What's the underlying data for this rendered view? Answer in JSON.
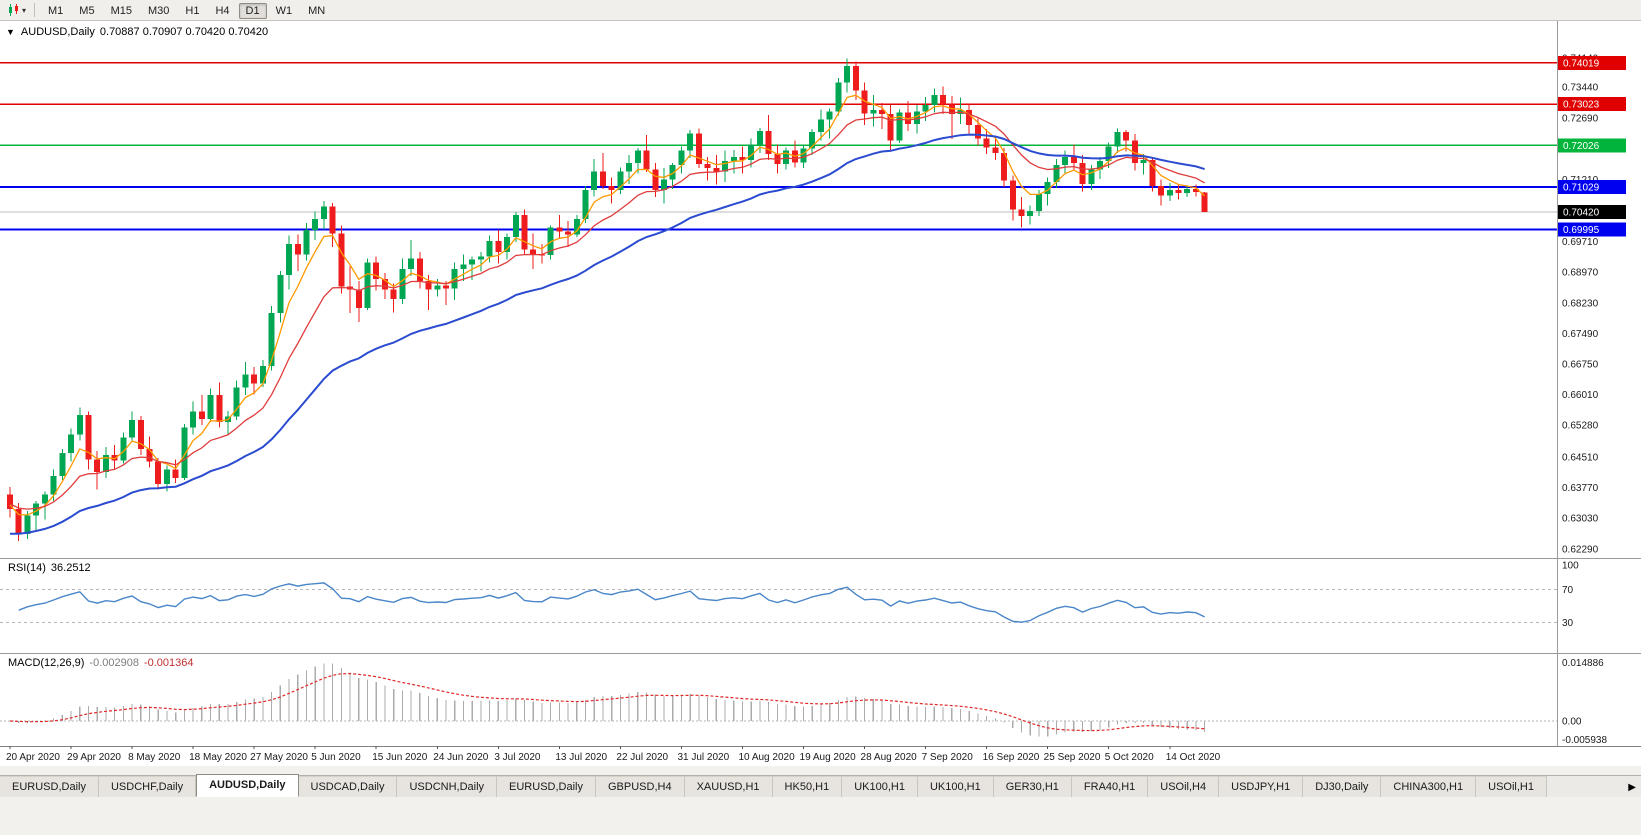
{
  "toolbar": {
    "chart_type_tooltip": "candlestick-chart-type",
    "caret": "▾",
    "timeframes": [
      "M1",
      "M5",
      "M15",
      "M30",
      "H1",
      "H4",
      "D1",
      "W1",
      "MN"
    ],
    "active_timeframe": "D1"
  },
  "header": {
    "menu_icon": "▼",
    "symbol_label": "AUDUSD,Daily",
    "ohlc": "0.70887 0.70907 0.70420 0.70420"
  },
  "rsi_panel": {
    "label": "RSI(14)",
    "value": "36.2512"
  },
  "macd_panel": {
    "label": "MACD(12,26,9)",
    "value_main": "-0.002908",
    "value_signal": "-0.001364"
  },
  "tabs": {
    "items": [
      "EURUSD,Daily",
      "USDCHF,Daily",
      "AUDUSD,Daily",
      "USDCAD,Daily",
      "USDCNH,Daily",
      "EURUSD,Daily",
      "GBPUSD,H4",
      "XAUUSD,H1",
      "HK50,H1",
      "UK100,H1",
      "UK100,H1",
      "GER30,H1",
      "FRA40,H1",
      "USOil,H4",
      "USDJPY,H1",
      "DJ30,Daily",
      "CHINA300,H1",
      "USOil,H1"
    ],
    "active_index": 2,
    "scroll_icon": "▶"
  },
  "chart_data": {
    "type": "candlestick",
    "symbol": "AUDUSD",
    "timeframe": "Daily",
    "ohlc_display": {
      "open": "0.70887",
      "high": "0.70907",
      "low": "0.70420",
      "close": "0.70420"
    },
    "ylim": [
      0.6207,
      0.7503
    ],
    "grid": false,
    "colors": {
      "bull": "#00a651",
      "bear": "#ee1c1c",
      "ma_fast": "#ff9900",
      "ma_mid": "#e03c3c",
      "ma_slow": "#2b4bd0",
      "rsi_line": "#4a86c8",
      "level_dash": "#b6b6b6",
      "macd_hist": "#ababab",
      "macd_signal": "#e02828",
      "axis_text": "#1a1a1a",
      "separator": "#9a9a9a"
    },
    "y_ticks": [
      "0.74140",
      "0.73440",
      "0.72690",
      "0.71940",
      "0.71210",
      "0.70460",
      "0.69710",
      "0.68970",
      "0.68230",
      "0.67490",
      "0.66750",
      "0.66010",
      "0.65280",
      "0.64510",
      "0.63770",
      "0.63030",
      "0.62290"
    ],
    "x_labels": [
      "20 Apr 2020",
      "29 Apr 2020",
      "8 May 2020",
      "18 May 2020",
      "27 May 2020",
      "5 Jun 2020",
      "15 Jun 2020",
      "24 Jun 2020",
      "3 Jul 2020",
      "13 Jul 2020",
      "22 Jul 2020",
      "31 Jul 2020",
      "10 Aug 2020",
      "19 Aug 2020",
      "28 Aug 2020",
      "7 Sep 2020",
      "16 Sep 2020",
      "25 Sep 2020",
      "5 Oct 2020",
      "14 Oct 2020"
    ],
    "x_label_indices": [
      0,
      7,
      14,
      21,
      28,
      35,
      42,
      49,
      56,
      63,
      70,
      77,
      84,
      91,
      98,
      105,
      112,
      119,
      126,
      133
    ],
    "hlines": [
      {
        "price": 0.74019,
        "label": "0.74019",
        "color": "#e00000",
        "width": 1.5
      },
      {
        "price": 0.73023,
        "label": "0.73023",
        "color": "#e00000",
        "width": 1.5
      },
      {
        "price": 0.72026,
        "label": "0.72026",
        "color": "#00b43c",
        "width": 1.5
      },
      {
        "price": 0.71029,
        "label": "0.71029",
        "color": "#0000f0",
        "width": 2
      },
      {
        "price": 0.69995,
        "label": "0.69995",
        "color": "#0000f0",
        "width": 2
      }
    ],
    "current_price": {
      "price": 0.7042,
      "label": "0.70420",
      "badge_color": "#000000",
      "line_color": "#bdbdbd"
    },
    "moving_averages": [
      {
        "name": "ma-fast",
        "period": 5,
        "seed": 0.634,
        "color": "#ff9900",
        "width": 1.3
      },
      {
        "name": "ma-mid",
        "period": 13,
        "seed": 0.634,
        "color": "#e03c3c",
        "width": 1.3
      },
      {
        "name": "ma-slow",
        "period": 34,
        "seed": 0.6262,
        "color": "#2b4bd0",
        "width": 2
      }
    ],
    "candles": [
      [
        0.636,
        0.6378,
        0.6305,
        0.6325
      ],
      [
        0.6325,
        0.634,
        0.6248,
        0.6265
      ],
      [
        0.6265,
        0.632,
        0.6253,
        0.631
      ],
      [
        0.631,
        0.6345,
        0.627,
        0.6338
      ],
      [
        0.6338,
        0.6368,
        0.63,
        0.636
      ],
      [
        0.636,
        0.642,
        0.6345,
        0.6405
      ],
      [
        0.6405,
        0.647,
        0.6395,
        0.646
      ],
      [
        0.646,
        0.652,
        0.644,
        0.6505
      ],
      [
        0.6505,
        0.657,
        0.649,
        0.6552
      ],
      [
        0.6552,
        0.656,
        0.642,
        0.6445
      ],
      [
        0.6445,
        0.6465,
        0.6372,
        0.6415
      ],
      [
        0.6415,
        0.6475,
        0.64,
        0.6455
      ],
      [
        0.6455,
        0.648,
        0.642,
        0.6442
      ],
      [
        0.6442,
        0.651,
        0.6435,
        0.6498
      ],
      [
        0.6498,
        0.656,
        0.649,
        0.654
      ],
      [
        0.654,
        0.655,
        0.6455,
        0.647
      ],
      [
        0.647,
        0.65,
        0.6425,
        0.644
      ],
      [
        0.644,
        0.6448,
        0.6372,
        0.6385
      ],
      [
        0.6385,
        0.643,
        0.6368,
        0.642
      ],
      [
        0.642,
        0.6445,
        0.6388,
        0.64
      ],
      [
        0.64,
        0.653,
        0.6395,
        0.6522
      ],
      [
        0.6522,
        0.6585,
        0.6505,
        0.656
      ],
      [
        0.656,
        0.66,
        0.6528,
        0.6542
      ],
      [
        0.6542,
        0.6616,
        0.6535,
        0.66
      ],
      [
        0.66,
        0.663,
        0.6522,
        0.6535
      ],
      [
        0.6535,
        0.6562,
        0.6505,
        0.6548
      ],
      [
        0.6548,
        0.6635,
        0.654,
        0.6618
      ],
      [
        0.6618,
        0.668,
        0.66,
        0.665
      ],
      [
        0.665,
        0.6668,
        0.6602,
        0.6628
      ],
      [
        0.6628,
        0.6685,
        0.662,
        0.667
      ],
      [
        0.667,
        0.6815,
        0.666,
        0.6798
      ],
      [
        0.6798,
        0.69,
        0.6775,
        0.689
      ],
      [
        0.689,
        0.6985,
        0.6855,
        0.6965
      ],
      [
        0.6965,
        0.6988,
        0.69,
        0.694
      ],
      [
        0.694,
        0.7015,
        0.6925,
        0.6998
      ],
      [
        0.6998,
        0.7043,
        0.6975,
        0.7025
      ],
      [
        0.7025,
        0.7068,
        0.7,
        0.7055
      ],
      [
        0.7055,
        0.7064,
        0.6958,
        0.699
      ],
      [
        0.699,
        0.701,
        0.6845,
        0.6862
      ],
      [
        0.6862,
        0.691,
        0.6798,
        0.6855
      ],
      [
        0.6855,
        0.6875,
        0.6776,
        0.681
      ],
      [
        0.681,
        0.693,
        0.6805,
        0.692
      ],
      [
        0.692,
        0.6935,
        0.6852,
        0.688
      ],
      [
        0.688,
        0.6895,
        0.6832,
        0.6855
      ],
      [
        0.6855,
        0.687,
        0.68,
        0.6832
      ],
      [
        0.6832,
        0.693,
        0.682,
        0.6905
      ],
      [
        0.6905,
        0.6975,
        0.6888,
        0.693
      ],
      [
        0.693,
        0.6945,
        0.6858,
        0.6875
      ],
      [
        0.6875,
        0.689,
        0.6805,
        0.6855
      ],
      [
        0.6855,
        0.688,
        0.6838,
        0.6865
      ],
      [
        0.6865,
        0.6875,
        0.6818,
        0.6858
      ],
      [
        0.6858,
        0.692,
        0.683,
        0.6905
      ],
      [
        0.6905,
        0.694,
        0.6875,
        0.6915
      ],
      [
        0.6915,
        0.6935,
        0.6878,
        0.6928
      ],
      [
        0.6928,
        0.6945,
        0.6898,
        0.6935
      ],
      [
        0.6935,
        0.6985,
        0.692,
        0.6972
      ],
      [
        0.6972,
        0.6998,
        0.6918,
        0.6945
      ],
      [
        0.6945,
        0.699,
        0.6928,
        0.6982
      ],
      [
        0.6982,
        0.7042,
        0.697,
        0.7035
      ],
      [
        0.7035,
        0.7048,
        0.6938,
        0.6952
      ],
      [
        0.6952,
        0.699,
        0.6905,
        0.694
      ],
      [
        0.694,
        0.6965,
        0.6918,
        0.6938
      ],
      [
        0.6938,
        0.701,
        0.6928,
        0.7005
      ],
      [
        0.7005,
        0.7035,
        0.6978,
        0.6995
      ],
      [
        0.6995,
        0.702,
        0.6958,
        0.6988
      ],
      [
        0.6988,
        0.7035,
        0.6982,
        0.7025
      ],
      [
        0.7025,
        0.7105,
        0.7015,
        0.7095
      ],
      [
        0.7095,
        0.717,
        0.708,
        0.714
      ],
      [
        0.714,
        0.7185,
        0.7098,
        0.7105
      ],
      [
        0.7105,
        0.7125,
        0.7063,
        0.7095
      ],
      [
        0.7095,
        0.715,
        0.7085,
        0.714
      ],
      [
        0.714,
        0.718,
        0.711,
        0.716
      ],
      [
        0.716,
        0.7197,
        0.7135,
        0.719
      ],
      [
        0.719,
        0.7228,
        0.7138,
        0.7145
      ],
      [
        0.7145,
        0.716,
        0.7078,
        0.7095
      ],
      [
        0.7095,
        0.7148,
        0.7062,
        0.712
      ],
      [
        0.712,
        0.716,
        0.7098,
        0.7155
      ],
      [
        0.7155,
        0.72,
        0.7135,
        0.719
      ],
      [
        0.719,
        0.724,
        0.7172,
        0.7232
      ],
      [
        0.7232,
        0.7243,
        0.7148,
        0.7158
      ],
      [
        0.7158,
        0.7175,
        0.7118,
        0.7148
      ],
      [
        0.7148,
        0.718,
        0.7108,
        0.714
      ],
      [
        0.714,
        0.719,
        0.7115,
        0.7165
      ],
      [
        0.7165,
        0.7192,
        0.7135,
        0.7175
      ],
      [
        0.7175,
        0.72,
        0.7135,
        0.7168
      ],
      [
        0.7168,
        0.722,
        0.715,
        0.7205
      ],
      [
        0.7205,
        0.7245,
        0.7185,
        0.7238
      ],
      [
        0.7238,
        0.7276,
        0.7168,
        0.7182
      ],
      [
        0.7182,
        0.7205,
        0.7135,
        0.7158
      ],
      [
        0.7158,
        0.7198,
        0.7145,
        0.719
      ],
      [
        0.719,
        0.7215,
        0.715,
        0.7162
      ],
      [
        0.7162,
        0.7205,
        0.7148,
        0.7195
      ],
      [
        0.7195,
        0.7242,
        0.718,
        0.7235
      ],
      [
        0.7235,
        0.729,
        0.7215,
        0.7265
      ],
      [
        0.7265,
        0.7292,
        0.722,
        0.7285
      ],
      [
        0.7285,
        0.7365,
        0.7275,
        0.7355
      ],
      [
        0.7355,
        0.7413,
        0.733,
        0.7395
      ],
      [
        0.7395,
        0.7405,
        0.7312,
        0.7335
      ],
      [
        0.7335,
        0.7355,
        0.7252,
        0.728
      ],
      [
        0.728,
        0.7325,
        0.7248,
        0.7288
      ],
      [
        0.7288,
        0.7305,
        0.7242,
        0.7278
      ],
      [
        0.7278,
        0.73,
        0.719,
        0.7215
      ],
      [
        0.7215,
        0.729,
        0.7208,
        0.7282
      ],
      [
        0.7282,
        0.731,
        0.7238,
        0.7255
      ],
      [
        0.7255,
        0.73,
        0.7232,
        0.7285
      ],
      [
        0.7285,
        0.732,
        0.7262,
        0.73
      ],
      [
        0.73,
        0.734,
        0.7282,
        0.7325
      ],
      [
        0.7325,
        0.7345,
        0.7278,
        0.7302
      ],
      [
        0.7302,
        0.7322,
        0.7218,
        0.7278
      ],
      [
        0.7278,
        0.7318,
        0.7255,
        0.7288
      ],
      [
        0.7288,
        0.7302,
        0.7232,
        0.7252
      ],
      [
        0.7252,
        0.7268,
        0.7202,
        0.722
      ],
      [
        0.722,
        0.7242,
        0.7182,
        0.7198
      ],
      [
        0.7198,
        0.7225,
        0.7168,
        0.7185
      ],
      [
        0.7185,
        0.7196,
        0.7102,
        0.7118
      ],
      [
        0.7118,
        0.713,
        0.7022,
        0.7048
      ],
      [
        0.7048,
        0.7078,
        0.7005,
        0.7032
      ],
      [
        0.7032,
        0.7058,
        0.7012,
        0.7045
      ],
      [
        0.7045,
        0.7095,
        0.7032,
        0.7085
      ],
      [
        0.7085,
        0.7125,
        0.7058,
        0.7115
      ],
      [
        0.7115,
        0.717,
        0.71,
        0.7155
      ],
      [
        0.7155,
        0.719,
        0.7132,
        0.7175
      ],
      [
        0.7175,
        0.7205,
        0.7142,
        0.716
      ],
      [
        0.716,
        0.718,
        0.7092,
        0.711
      ],
      [
        0.711,
        0.7155,
        0.7095,
        0.7145
      ],
      [
        0.7145,
        0.7175,
        0.7122,
        0.7165
      ],
      [
        0.7165,
        0.721,
        0.7148,
        0.72
      ],
      [
        0.72,
        0.7243,
        0.7185,
        0.7235
      ],
      [
        0.7235,
        0.724,
        0.7188,
        0.7215
      ],
      [
        0.7215,
        0.723,
        0.7142,
        0.716
      ],
      [
        0.716,
        0.7182,
        0.7132,
        0.7168
      ],
      [
        0.7168,
        0.7175,
        0.7092,
        0.7105
      ],
      [
        0.7105,
        0.712,
        0.7058,
        0.7082
      ],
      [
        0.7082,
        0.7112,
        0.7068,
        0.7095
      ],
      [
        0.7095,
        0.711,
        0.7072,
        0.7088
      ],
      [
        0.7088,
        0.7105,
        0.7078,
        0.7098
      ],
      [
        0.7098,
        0.7108,
        0.708,
        0.709
      ],
      [
        0.70887,
        0.70907,
        0.7042,
        0.7042
      ]
    ],
    "indicators": [
      {
        "type": "line",
        "name": "RSI",
        "period": 14,
        "current_value": "36.2512",
        "levels": [
          70,
          30
        ],
        "scale": [
          0,
          100
        ],
        "scale_labels": [
          {
            "text": "100",
            "value": 100
          },
          {
            "text": "70",
            "value": 70
          },
          {
            "text": "30",
            "value": 30
          }
        ]
      },
      {
        "type": "histogram+line",
        "name": "MACD",
        "params": [
          12,
          26,
          9
        ],
        "current_main": "-0.002908",
        "current_signal": "-0.001364",
        "scale_labels_top": "0.014886",
        "scale_label_zero": "0.00",
        "scale_labels_bottom": "-0.005938"
      }
    ]
  }
}
